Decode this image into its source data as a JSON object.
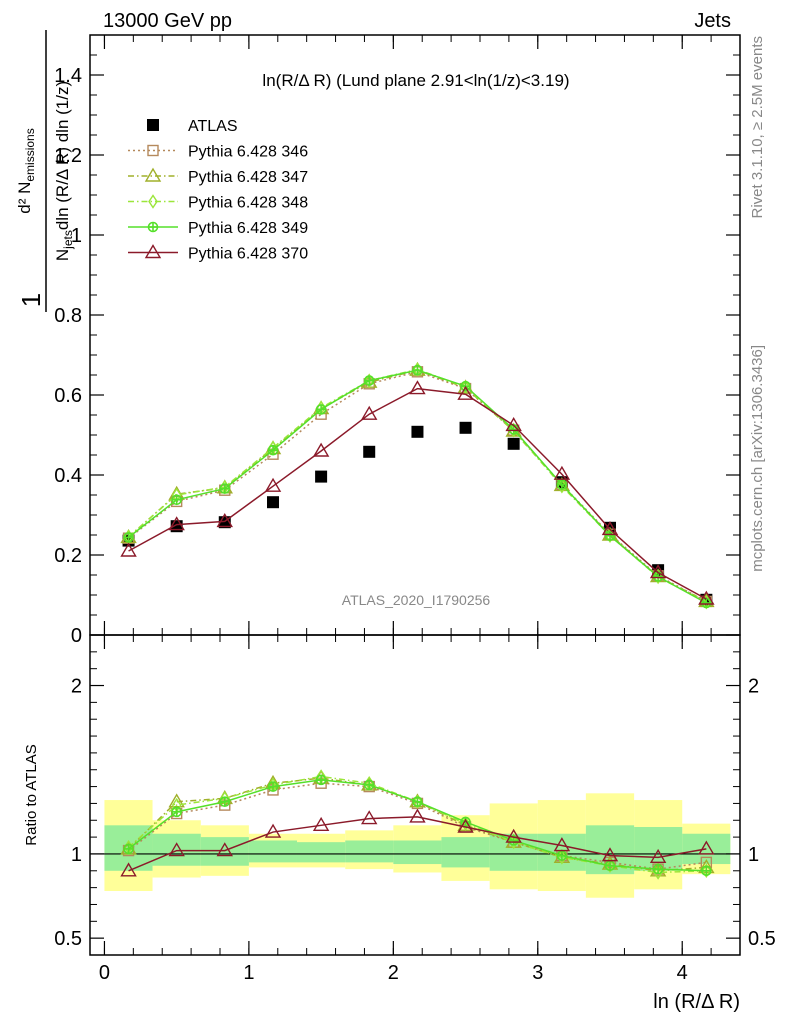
{
  "header": {
    "left": "13000 GeV pp",
    "right": "Jets"
  },
  "plot_title": "ln(R/Δ R) (Lund plane 2.91<ln(1/z)<3.19)",
  "analysis_id": "ATLAS_2020_I1790256",
  "side_text": {
    "rivet": "Rivet 3.1.10, ≥ 2.5M events",
    "mcplots": "mcplots.cern.ch [arXiv:1306.3436]"
  },
  "chart_data": [
    {
      "type": "scatter",
      "panel": "main",
      "ylabel": "1/N_jets d²N_emissions / dln(R/Δ R) dln(1/z)",
      "ylim": [
        0,
        1.5
      ],
      "xlim": [
        -0.1,
        4.4
      ],
      "y_ticks": [
        "0",
        "0.2",
        "0.4",
        "0.6",
        "0.8",
        "1",
        "1.2",
        "1.4"
      ],
      "legend_placement": "top-left",
      "x": [
        0.167,
        0.5,
        0.833,
        1.167,
        1.5,
        1.833,
        2.167,
        2.5,
        2.833,
        3.167,
        3.5,
        3.833,
        4.167
      ],
      "series": [
        {
          "name": "ATLAS",
          "color": "#000000",
          "marker": "square-filled",
          "line": "none",
          "values": [
            0.236,
            0.272,
            0.282,
            0.332,
            0.396,
            0.458,
            0.508,
            0.518,
            0.478,
            0.382,
            0.268,
            0.162,
            0.088
          ]
        },
        {
          "name": "Pythia 6.428 346",
          "color": "#b5895c",
          "marker": "square-open",
          "line": "dotted",
          "values": [
            0.242,
            0.334,
            0.362,
            0.452,
            0.552,
            0.628,
            0.658,
            0.616,
            0.512,
            0.376,
            0.252,
            0.148,
            0.084
          ]
        },
        {
          "name": "Pythia 6.428 347",
          "color": "#a0b02a",
          "marker": "triangle-open",
          "line": "dashdot",
          "values": [
            0.244,
            0.352,
            0.368,
            0.466,
            0.566,
            0.632,
            0.662,
            0.618,
            0.51,
            0.374,
            0.25,
            0.146,
            0.084
          ]
        },
        {
          "name": "Pythia 6.428 348",
          "color": "#9be63a",
          "marker": "diamond-open",
          "line": "dashdot",
          "values": [
            0.246,
            0.35,
            0.37,
            0.468,
            0.568,
            0.636,
            0.664,
            0.62,
            0.512,
            0.372,
            0.248,
            0.145,
            0.082
          ]
        },
        {
          "name": "Pythia 6.428 349",
          "color": "#55e02a",
          "marker": "cross-circle",
          "line": "solid",
          "values": [
            0.244,
            0.338,
            0.366,
            0.462,
            0.564,
            0.636,
            0.662,
            0.622,
            0.514,
            0.376,
            0.248,
            0.146,
            0.08
          ]
        },
        {
          "name": "Pythia 6.428 370",
          "color": "#8b1a2a",
          "marker": "triangle-open",
          "line": "solid",
          "values": [
            0.21,
            0.276,
            0.284,
            0.372,
            0.46,
            0.552,
            0.616,
            0.602,
            0.524,
            0.402,
            0.264,
            0.156,
            0.09
          ]
        }
      ]
    },
    {
      "type": "line",
      "panel": "ratio",
      "ylabel": "Ratio to ATLAS",
      "xlabel": "ln (R/Δ R)",
      "ylim": [
        0.4,
        2.3
      ],
      "xlim": [
        -0.1,
        4.4
      ],
      "y_ticks": [
        "0.5",
        "1",
        "2"
      ],
      "x_ticks": [
        "0",
        "1",
        "2",
        "3",
        "4"
      ],
      "x": [
        0.167,
        0.5,
        0.833,
        1.167,
        1.5,
        1.833,
        2.167,
        2.5,
        2.833,
        3.167,
        3.5,
        3.833,
        4.167
      ],
      "bin_edges": [
        0.0,
        0.333,
        0.667,
        1.0,
        1.333,
        1.667,
        2.0,
        2.333,
        2.667,
        3.0,
        3.333,
        3.667,
        4.0,
        4.333
      ],
      "stat_band": {
        "color": "#99ee99",
        "lo": [
          0.9,
          0.93,
          0.93,
          0.95,
          0.95,
          0.95,
          0.94,
          0.92,
          0.9,
          0.9,
          0.88,
          0.9,
          0.94
        ],
        "hi": [
          1.17,
          1.12,
          1.1,
          1.08,
          1.07,
          1.08,
          1.08,
          1.1,
          1.12,
          1.12,
          1.17,
          1.16,
          1.12
        ]
      },
      "syst_band": {
        "color": "#ffff99",
        "lo": [
          0.78,
          0.86,
          0.87,
          0.92,
          0.92,
          0.91,
          0.89,
          0.84,
          0.79,
          0.78,
          0.74,
          0.79,
          0.88
        ],
        "hi": [
          1.32,
          1.2,
          1.17,
          1.12,
          1.12,
          1.14,
          1.17,
          1.23,
          1.3,
          1.32,
          1.36,
          1.32,
          1.18
        ]
      },
      "series": [
        {
          "name": "Pythia 6.428 346",
          "color": "#b5895c",
          "values": [
            1.02,
            1.24,
            1.29,
            1.38,
            1.42,
            1.4,
            1.3,
            1.16,
            1.07,
            0.99,
            0.95,
            0.91,
            0.95
          ]
        },
        {
          "name": "Pythia 6.428 347",
          "color": "#a0b02a",
          "values": [
            1.03,
            1.31,
            1.33,
            1.42,
            1.45,
            1.41,
            1.31,
            1.17,
            1.07,
            0.98,
            0.94,
            0.9,
            0.92
          ]
        },
        {
          "name": "Pythia 6.428 348",
          "color": "#9be63a",
          "values": [
            1.04,
            1.29,
            1.33,
            1.41,
            1.46,
            1.42,
            1.31,
            1.18,
            1.07,
            0.98,
            0.93,
            0.89,
            0.9
          ]
        },
        {
          "name": "Pythia 6.428 349",
          "color": "#55e02a",
          "values": [
            1.03,
            1.25,
            1.31,
            1.4,
            1.44,
            1.41,
            1.31,
            1.19,
            1.08,
            0.99,
            0.93,
            0.91,
            0.9
          ]
        },
        {
          "name": "Pythia 6.428 370",
          "color": "#8b1a2a",
          "values": [
            0.9,
            1.02,
            1.02,
            1.13,
            1.17,
            1.21,
            1.22,
            1.16,
            1.1,
            1.05,
            0.99,
            0.98,
            1.03
          ]
        }
      ]
    }
  ]
}
